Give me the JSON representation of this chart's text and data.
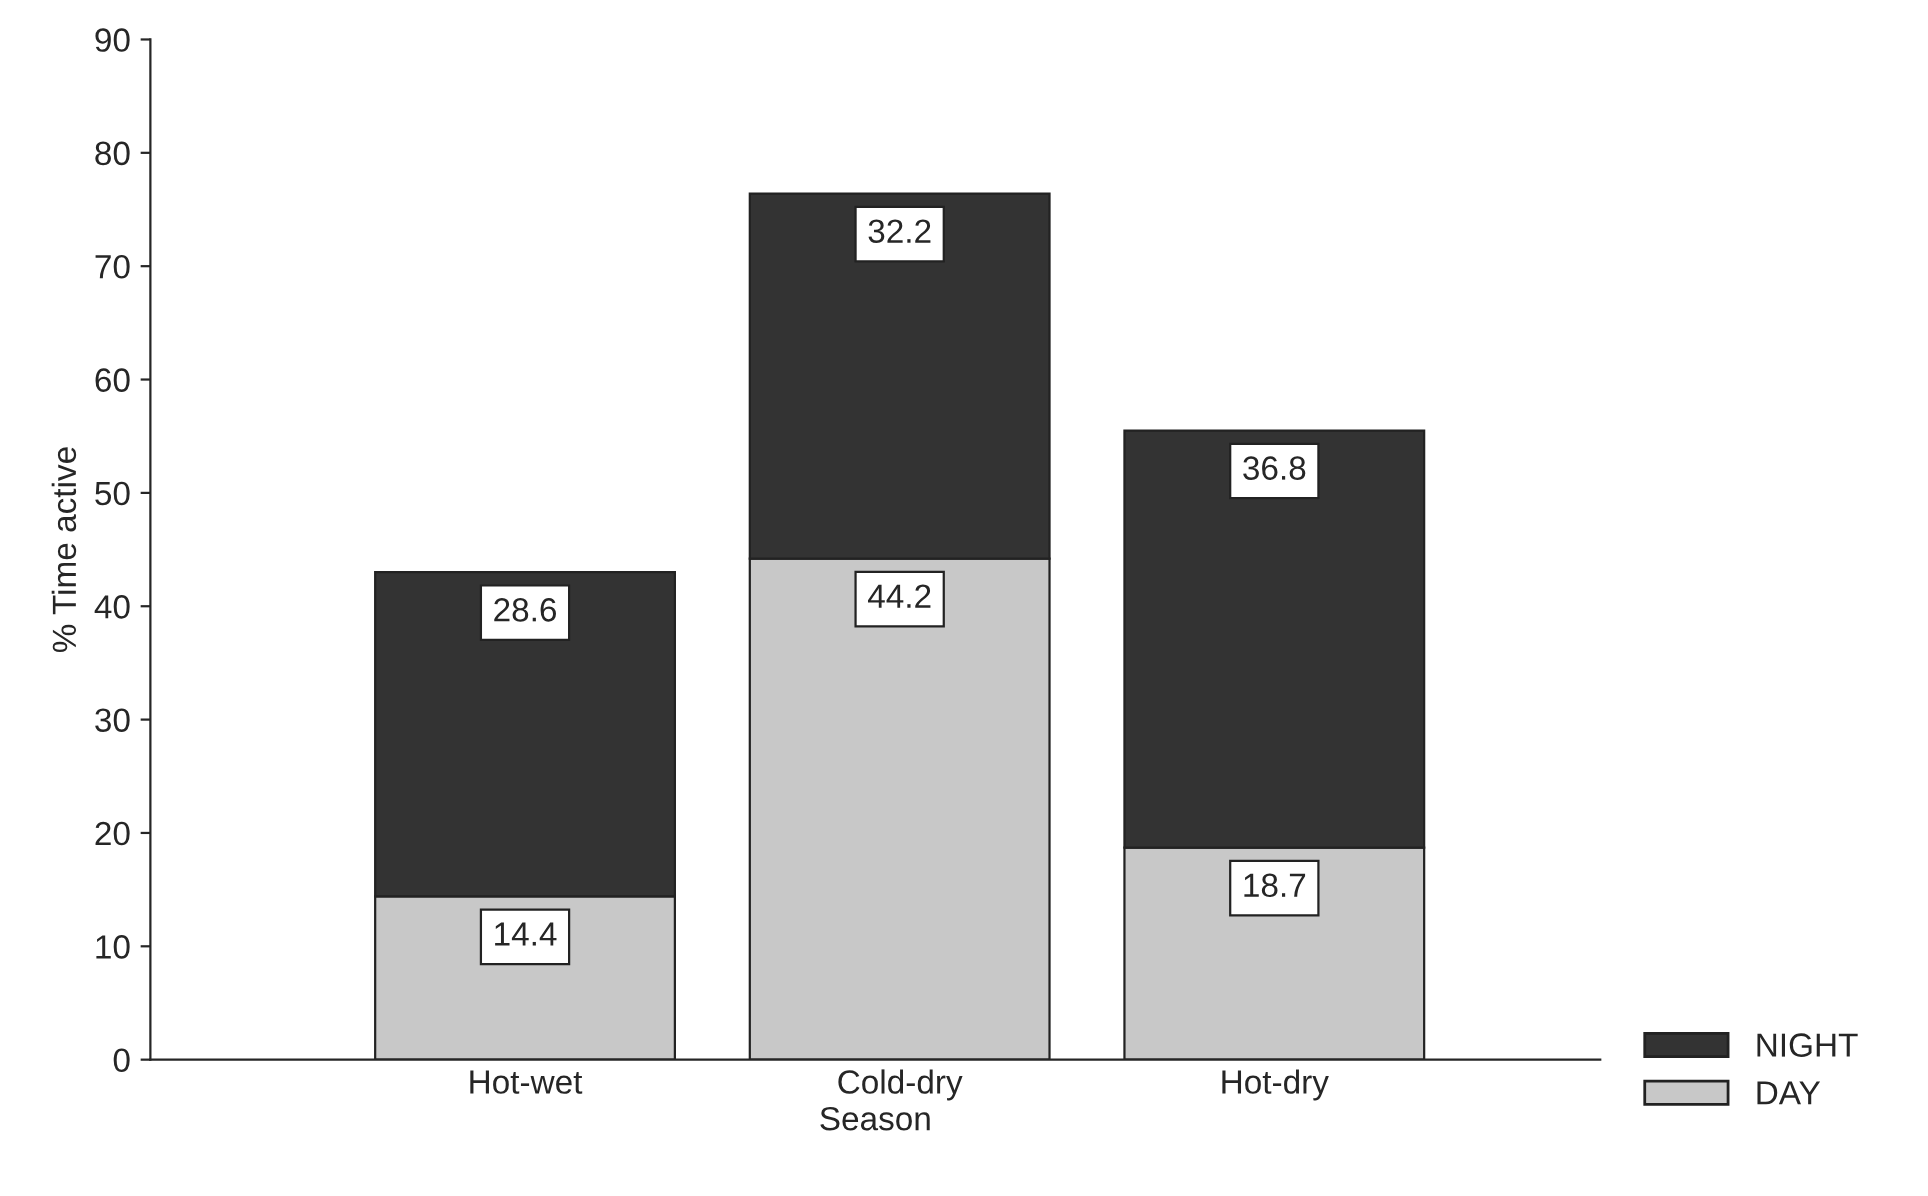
{
  "chart_data": {
    "type": "bar",
    "stacked": true,
    "xlabel": "Season",
    "ylabel": "% Time active",
    "categories": [
      "Hot-wet",
      "Cold-dry",
      "Hot-dry"
    ],
    "series": [
      {
        "name": "DAY",
        "color": "#c8c8c8",
        "values": [
          14.4,
          44.2,
          18.7
        ]
      },
      {
        "name": "NIGHT",
        "color": "#333333",
        "values": [
          28.6,
          32.2,
          36.8
        ]
      }
    ],
    "ylim": [
      0,
      90
    ],
    "yticks": [
      0,
      10,
      20,
      30,
      40,
      50,
      60,
      70,
      80,
      90
    ],
    "data_labels": true,
    "legend": "bottom right",
    "grid": false
  }
}
